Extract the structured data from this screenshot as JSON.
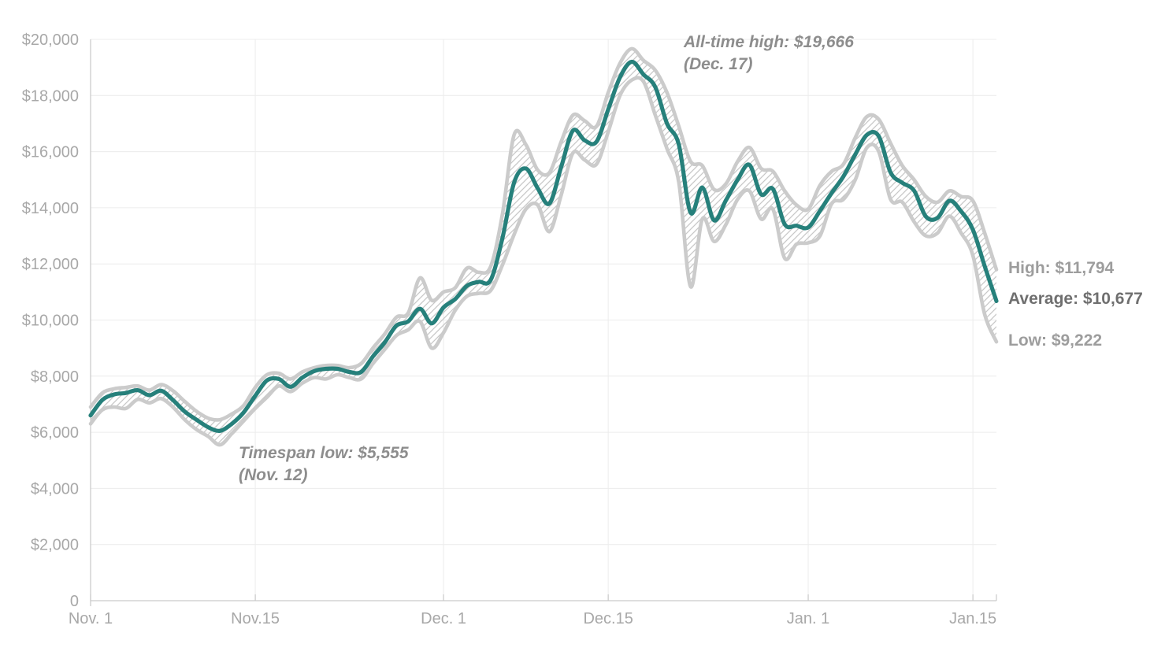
{
  "chart_data": {
    "type": "line",
    "description": "Bitcoin price range chart: daily high/low band (hatched) with average line, Nov 1 - mid Jan",
    "ylim": [
      0,
      20000
    ],
    "grid": true,
    "y_ticks": [
      {
        "v": 0,
        "label": "0"
      },
      {
        "v": 2000,
        "label": "$2,000"
      },
      {
        "v": 4000,
        "label": "$4,000"
      },
      {
        "v": 6000,
        "label": "$6,000"
      },
      {
        "v": 8000,
        "label": "$8,000"
      },
      {
        "v": 10000,
        "label": "$10,000"
      },
      {
        "v": 12000,
        "label": "$12,000"
      },
      {
        "v": 14000,
        "label": "$14,000"
      },
      {
        "v": 16000,
        "label": "$16,000"
      },
      {
        "v": 18000,
        "label": "$18,000"
      },
      {
        "v": 20000,
        "label": "$20,000"
      }
    ],
    "x_ticks": [
      {
        "i": 0,
        "label": "Nov. 1",
        "grid": false
      },
      {
        "i": 14,
        "label": "Nov.15",
        "grid": true
      },
      {
        "i": 30,
        "label": "Dec. 1",
        "grid": true
      },
      {
        "i": 44,
        "label": "Dec.15",
        "grid": true
      },
      {
        "i": 61,
        "label": "Jan. 1",
        "grid": true
      },
      {
        "i": 75,
        "label": "Jan.15",
        "grid": true
      }
    ],
    "series": [
      {
        "name": "high",
        "values": [
          6900,
          7400,
          7550,
          7600,
          7650,
          7500,
          7700,
          7480,
          7100,
          6750,
          6500,
          6450,
          6650,
          6950,
          7600,
          8050,
          8100,
          7900,
          8150,
          8300,
          8380,
          8380,
          8300,
          8450,
          9000,
          9500,
          10100,
          10250,
          11500,
          10700,
          11000,
          11150,
          11850,
          11700,
          11900,
          13750,
          16600,
          16250,
          15350,
          15250,
          16350,
          17300,
          17100,
          16900,
          18100,
          19150,
          19666,
          19250,
          18900,
          18100,
          16900,
          15650,
          15500,
          14650,
          14850,
          15650,
          16150,
          15400,
          15300,
          14600,
          14100,
          13950,
          14800,
          15300,
          15550,
          16500,
          17250,
          17150,
          16300,
          15500,
          15000,
          14400,
          14200,
          14600,
          14400,
          14250,
          13100,
          11794
        ]
      },
      {
        "name": "average",
        "values": [
          6600,
          7150,
          7350,
          7400,
          7500,
          7320,
          7480,
          7150,
          6740,
          6450,
          6180,
          6050,
          6300,
          6700,
          7300,
          7850,
          7900,
          7620,
          7950,
          8180,
          8260,
          8260,
          8150,
          8150,
          8700,
          9200,
          9800,
          9950,
          10400,
          9880,
          10450,
          10750,
          11220,
          11360,
          11420,
          12900,
          14900,
          15400,
          14700,
          14150,
          15450,
          16750,
          16400,
          16350,
          17500,
          18650,
          19200,
          18750,
          18300,
          17000,
          16250,
          13830,
          14720,
          13550,
          14260,
          15000,
          15530,
          14480,
          14670,
          13410,
          13360,
          13300,
          13890,
          14530,
          15120,
          15900,
          16600,
          16550,
          15260,
          14890,
          14610,
          13690,
          13640,
          14250,
          13870,
          13220,
          11920,
          10677
        ]
      },
      {
        "name": "low",
        "values": [
          6300,
          6800,
          6900,
          6850,
          7170,
          7050,
          7200,
          6900,
          6450,
          6100,
          5850,
          5555,
          5950,
          6400,
          6850,
          7250,
          7650,
          7450,
          7750,
          7950,
          7900,
          8050,
          7950,
          7900,
          8450,
          8950,
          9450,
          9650,
          9950,
          9000,
          9550,
          10350,
          10850,
          10950,
          11050,
          11950,
          13050,
          13950,
          14100,
          13150,
          14450,
          15950,
          15700,
          15550,
          16700,
          18000,
          18550,
          18500,
          17300,
          16100,
          14900,
          11190,
          13600,
          12800,
          13400,
          14300,
          14600,
          13600,
          13950,
          12200,
          12700,
          12750,
          13000,
          14150,
          14300,
          15000,
          16150,
          16000,
          14300,
          14200,
          13500,
          13000,
          13100,
          13700,
          13100,
          12300,
          10200,
          9222
        ]
      }
    ],
    "colors": {
      "average_line": "#26807b",
      "band_line": "#cbcbcb",
      "hatch": "#c8c8c8",
      "gridline": "#ececec",
      "axis": "#c9c9c9",
      "tick_label": "#a8a8a8"
    },
    "final_values": {
      "high": 11794,
      "average": 10677,
      "low": 9222
    },
    "all_time_high": {
      "value": 19666,
      "date": "Dec. 17"
    },
    "timespan_low": {
      "value": 5555,
      "date": "Nov. 12"
    }
  },
  "annotations": {
    "all_time_high_line1": "All-time high: $19,666",
    "all_time_high_line2": "(Dec. 17)",
    "timespan_low_line1": "Timespan low: $5,555",
    "timespan_low_line2": "(Nov. 12)"
  },
  "end_labels": {
    "high": "High: $11,794",
    "average": "Average: $10,677",
    "low": "Low: $9,222"
  }
}
